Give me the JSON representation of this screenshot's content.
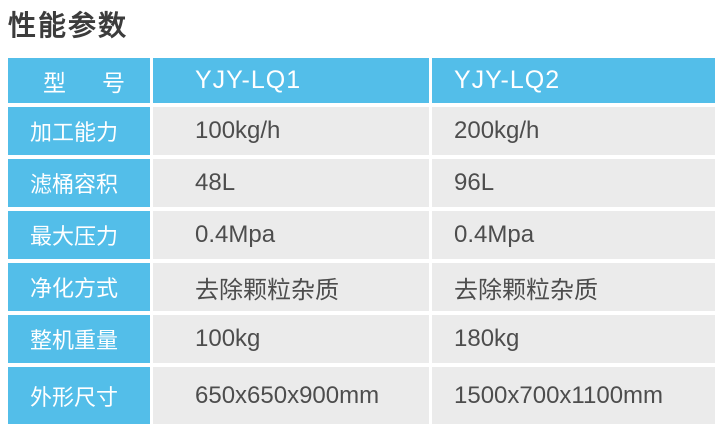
{
  "title": "性能参数",
  "colors": {
    "accent_blue": "#53bee9",
    "data_cell_gray": "#ebebeb",
    "data_text": "#4d4d4d",
    "header_text": "#ffffff",
    "title_text": "#3c3c3c"
  },
  "table": {
    "header": {
      "model_label": "型号",
      "model_1": "YJY-LQ1",
      "model_2": "YJY-LQ2"
    },
    "rows": [
      {
        "label": "加工能力",
        "lq1": "100kg/h",
        "lq2": "200kg/h"
      },
      {
        "label": "滤桶容积",
        "lq1": "48L",
        "lq2": "96L"
      },
      {
        "label": "最大压力",
        "lq1": "0.4Mpa",
        "lq2": "0.4Mpa"
      },
      {
        "label": "净化方式",
        "lq1": "去除颗粒杂质",
        "lq2": "去除颗粒杂质"
      },
      {
        "label": "整机重量",
        "lq1": "100kg",
        "lq2": "180kg"
      },
      {
        "label": "外形尺寸",
        "lq1": "650x650x900mm",
        "lq2": "1500x700x1100mm"
      }
    ]
  }
}
